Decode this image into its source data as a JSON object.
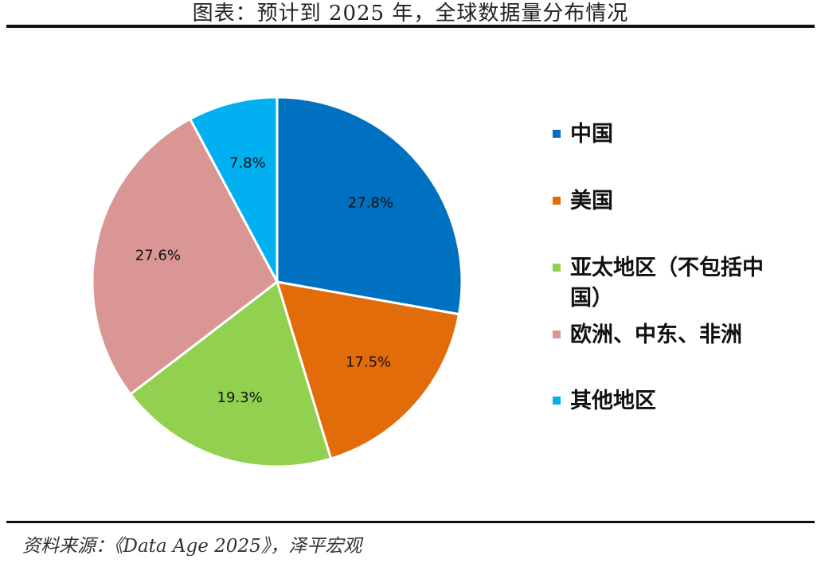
{
  "header": {
    "title": "图表：预计到 2025 年，全球数据量分布情况"
  },
  "footer": {
    "source": "资料来源：《Data Age 2025》，泽平宏观"
  },
  "chart_data": {
    "type": "pie",
    "title": "图表：预计到 2025 年，全球数据量分布情况",
    "legend_position": "right",
    "slices": [
      {
        "name": "中国",
        "value": 27.8,
        "label": "27.8%",
        "color": "#0070C0"
      },
      {
        "name": "美国",
        "value": 17.5,
        "label": "17.5%",
        "color": "#E36C0A"
      },
      {
        "name": "亚太地区（不包括中国）",
        "value": 19.3,
        "label": "19.3%",
        "color": "#92D050"
      },
      {
        "name": "欧洲、中东、非洲",
        "value": 27.6,
        "label": "27.6%",
        "color": "#D99694"
      },
      {
        "name": "其他地区",
        "value": 7.8,
        "label": "7.8%",
        "color": "#00B0F0"
      }
    ]
  }
}
